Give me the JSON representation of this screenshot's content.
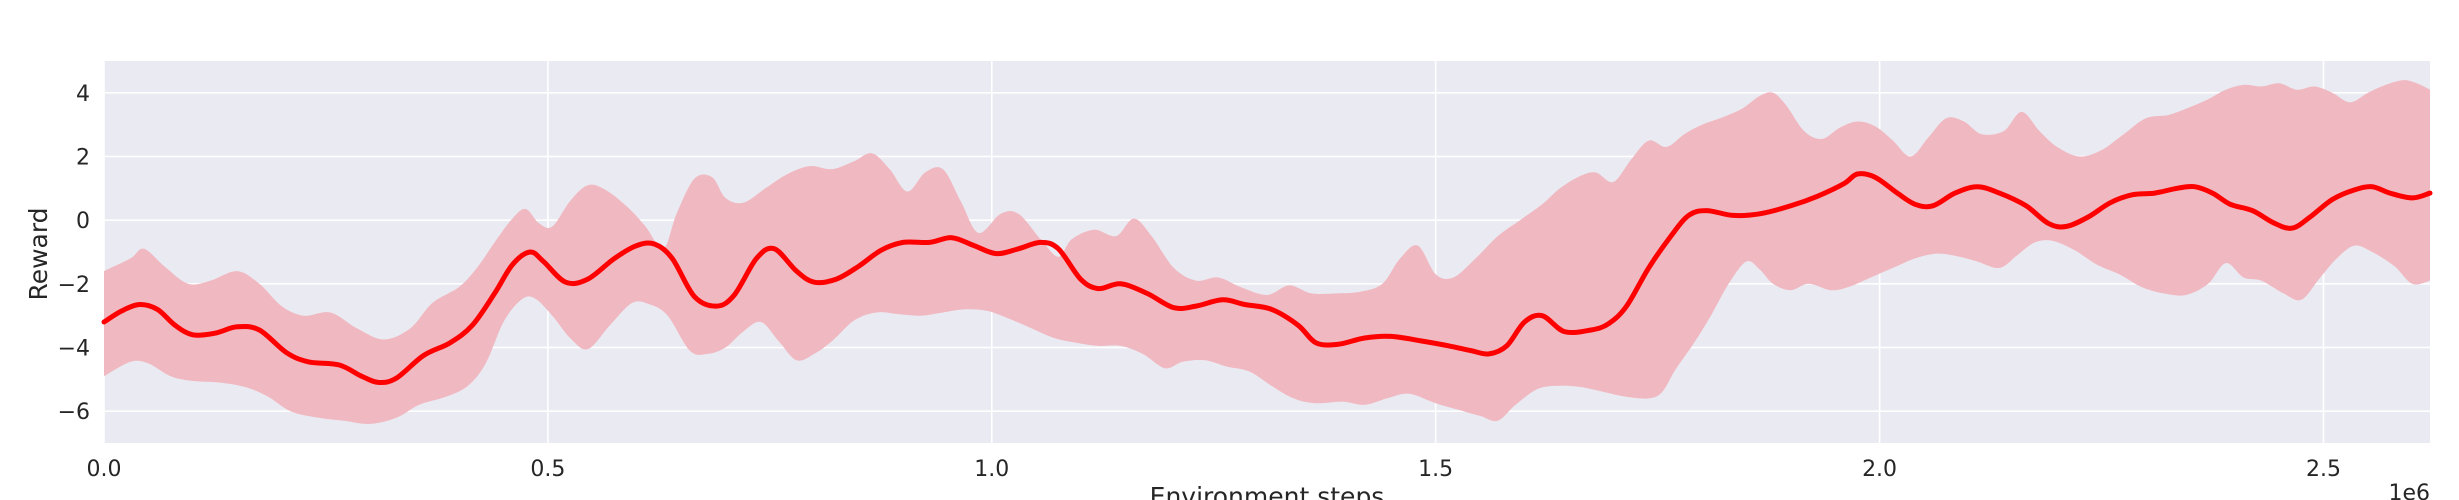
{
  "chart_data": {
    "type": "line",
    "xlabel": "Environment steps",
    "ylabel": "Reward",
    "x_offset_text": "1e6",
    "xlim": [
      0,
      2620000
    ],
    "ylim": [
      -7,
      5
    ],
    "x_ticks": [
      0,
      500000,
      1000000,
      1500000,
      2000000,
      2500000
    ],
    "x_tick_labels": [
      "0.0",
      "0.5",
      "1.0",
      "1.5",
      "2.0",
      "2.5"
    ],
    "y_ticks": [
      -6,
      -4,
      -2,
      0,
      2,
      4
    ],
    "y_tick_labels": [
      "−6",
      "−4",
      "−2",
      "0",
      "2",
      "4"
    ],
    "grid": true,
    "colors": {
      "line": "#ff0000",
      "band": "#f0b8c0",
      "plot_bg": "#eaeaf2",
      "grid": "#ffffff"
    },
    "series": [
      {
        "mean": [
          [
            0,
            -3.2
          ],
          [
            20000,
            -2.9
          ],
          [
            40000,
            -2.65
          ],
          [
            55000,
            -2.75
          ],
          [
            75000,
            -3.3
          ],
          [
            95000,
            -3.6
          ],
          [
            120000,
            -3.55
          ],
          [
            155000,
            -3.3
          ],
          [
            185000,
            -3.55
          ],
          [
            215000,
            -4.2
          ],
          [
            245000,
            -4.5
          ],
          [
            270000,
            -4.6
          ],
          [
            300000,
            -4.95
          ],
          [
            330000,
            -5.1
          ],
          [
            350000,
            -4.9
          ],
          [
            385000,
            -4.2
          ],
          [
            420000,
            -3.8
          ],
          [
            450000,
            -3.2
          ],
          [
            475000,
            -2.2
          ],
          [
            495000,
            -1.35
          ],
          [
            515000,
            -1.0
          ],
          [
            535000,
            -1.45
          ],
          [
            560000,
            -1.95
          ],
          [
            585000,
            -1.75
          ],
          [
            615000,
            -1.1
          ],
          [
            640000,
            -0.8
          ],
          [
            660000,
            -0.8
          ],
          [
            685000,
            -1.3
          ],
          [
            710000,
            -2.45
          ],
          [
            735000,
            -2.7
          ],
          [
            760000,
            -2.2
          ],
          [
            785000,
            -1.1
          ],
          [
            805000,
            -0.9
          ],
          [
            830000,
            -1.55
          ],
          [
            850000,
            -1.9
          ],
          [
            875000,
            -1.85
          ],
          [
            905000,
            -1.45
          ],
          [
            935000,
            -0.95
          ],
          [
            960000,
            -0.7
          ],
          [
            995000,
            -0.7
          ],
          [
            1025000,
            -0.55
          ],
          [
            1055000,
            -0.8
          ],
          [
            1080000,
            -1.05
          ],
          [
            1105000,
            -0.9
          ],
          [
            1135000,
            -0.7
          ],
          [
            1160000,
            -0.9
          ],
          [
            1195000,
            -1.9
          ],
          [
            1220000,
            -2.15
          ],
          [
            1245000,
            -2.0
          ],
          [
            1275000,
            -2.3
          ],
          [
            1310000,
            -2.75
          ],
          [
            1340000,
            -2.7
          ],
          [
            1365000,
            -2.5
          ],
          [
            1400000,
            -2.65
          ],
          [
            1435000,
            -2.8
          ],
          [
            1465000,
            -3.3
          ],
          [
            1490000,
            -3.85
          ],
          [
            1515000,
            -3.9
          ],
          [
            1550000,
            -3.7
          ],
          [
            1590000,
            -3.65
          ],
          [
            1635000,
            -3.8
          ],
          [
            1680000,
            -3.95
          ],
          [
            1715000,
            -4.1
          ],
          [
            1735000,
            -4.2
          ],
          [
            1755000,
            -3.95
          ],
          [
            1780000,
            -3.25
          ],
          [
            1805000,
            -3.0
          ],
          [
            1840000,
            -3.5
          ],
          [
            1875000,
            -3.45
          ],
          [
            1905000,
            -3.25
          ],
          [
            1925000,
            -2.7
          ],
          [
            1955000,
            -1.5
          ],
          [
            1985000,
            -0.5
          ],
          [
            2005000,
            0.1
          ],
          [
            2025000,
            0.3
          ],
          [
            2055000,
            0.15
          ],
          [
            2085000,
            0.2
          ],
          [
            2125000,
            0.45
          ],
          [
            2155000,
            0.75
          ],
          [
            2185000,
            1.1
          ],
          [
            2205000,
            1.45
          ],
          [
            2225000,
            1.4
          ],
          [
            2245000,
            0.9
          ],
          [
            2265000,
            0.5
          ],
          [
            2285000,
            0.45
          ],
          [
            2310000,
            0.85
          ],
          [
            2340000,
            1.05
          ],
          [
            2365000,
            0.85
          ],
          [
            2395000,
            0.45
          ],
          [
            2425000,
            -0.1
          ],
          [
            2445000,
            -0.2
          ],
          [
            2470000,
            0.05
          ],
          [
            2500000,
            0.55
          ],
          [
            2525000,
            0.8
          ],
          [
            2555000,
            0.85
          ],
          [
            2585000,
            1.0
          ],
          [
            2605000,
            1.05
          ],
          [
            2620000,
            0.95
          ]
        ],
        "mean_scaled_note": "",
        "lower": [],
        "upper": []
      }
    ]
  }
}
